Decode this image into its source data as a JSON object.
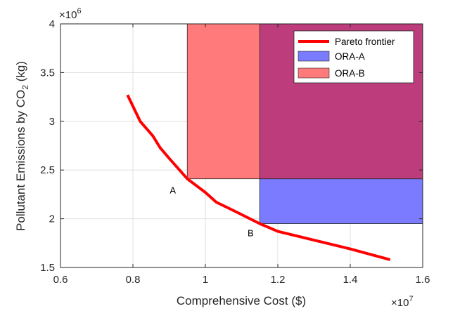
{
  "chart_data": {
    "type": "line",
    "title": "",
    "xlabel": "Comprehensive Cost ($)",
    "ylabel": "Pollutant Emissions by CO",
    "ylabel_subscript": "2",
    "ylabel_unit": " (kg)",
    "x_exponent": {
      "base": "×10",
      "power": "7"
    },
    "y_exponent": {
      "base": "×10",
      "power": "6"
    },
    "xlim": [
      0.6,
      1.6
    ],
    "ylim": [
      1.5,
      4.0
    ],
    "x_ticks": [
      0.6,
      0.8,
      1.0,
      1.2,
      1.4,
      1.6
    ],
    "x_tick_labels": [
      "0.6",
      "0.8",
      "1",
      "1.2",
      "1.4",
      "1.6"
    ],
    "y_ticks": [
      1.5,
      2.0,
      2.5,
      3.0,
      3.5,
      4.0
    ],
    "y_tick_labels": [
      "1.5",
      "2",
      "2.5",
      "3",
      "3.5",
      "4"
    ],
    "grid": true,
    "legend_position": "top-right",
    "series": [
      {
        "name": "Pareto frontier",
        "color": "#ff0000",
        "x": [
          0.785,
          0.82,
          0.855,
          0.875,
          0.9,
          0.95,
          1.0,
          1.03,
          1.08,
          1.15,
          1.2,
          1.3,
          1.4,
          1.51
        ],
        "y": [
          3.27,
          3.0,
          2.85,
          2.73,
          2.62,
          2.41,
          2.27,
          2.17,
          2.08,
          1.95,
          1.87,
          1.78,
          1.69,
          1.58
        ]
      }
    ],
    "regions": [
      {
        "name": "ORA-A",
        "color": "#7b7bff",
        "x_range": [
          1.15,
          1.6
        ],
        "y_range": [
          1.95,
          4.0
        ]
      },
      {
        "name": "ORA-B",
        "color": "#ff7b7b",
        "x_range": [
          0.95,
          1.6
        ],
        "y_range": [
          2.41,
          4.0
        ]
      }
    ],
    "overlap_color": "#bd3c7c",
    "annotations": [
      {
        "text": "A",
        "x": 0.91,
        "y": 2.26
      },
      {
        "text": "B",
        "x": 1.125,
        "y": 1.82
      }
    ]
  }
}
